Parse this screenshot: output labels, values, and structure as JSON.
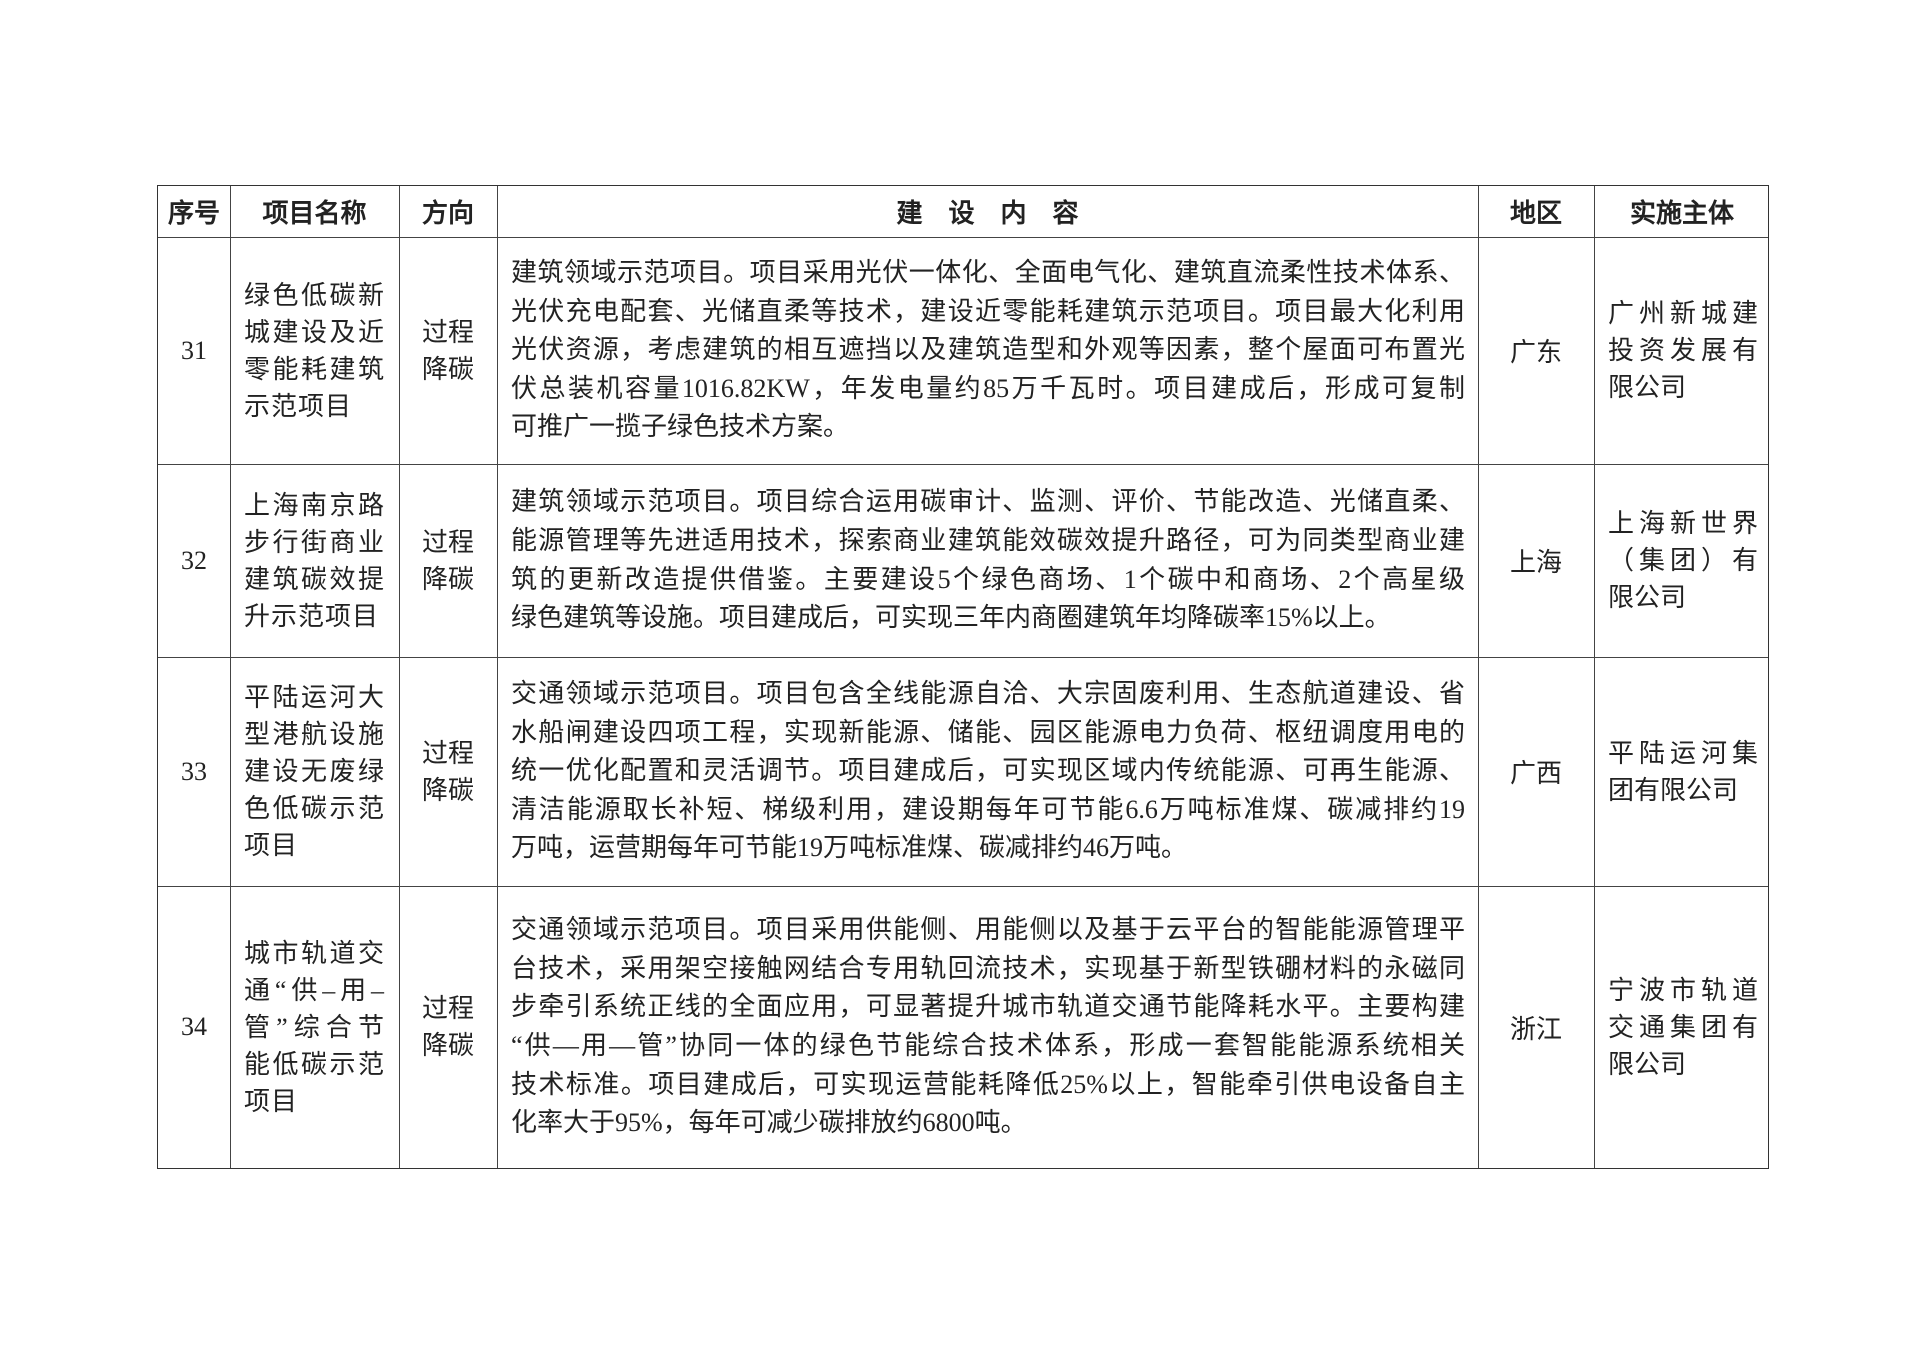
{
  "header": {
    "seq": "序号",
    "name": "项目名称",
    "direction": "方向",
    "content": "建　设　内　容",
    "region": "地区",
    "entity": "实施主体"
  },
  "rows": [
    {
      "seq": "31",
      "name_lines": [
        "绿色低碳新",
        "城建设及近",
        "零能耗建筑",
        "示范项目"
      ],
      "direction_lines": [
        "过程",
        "降碳"
      ],
      "content_lines": [
        "建筑领域示范项目。项目采用光伏一体化、全面电气化、建筑直流柔性技术体系、",
        "光伏充电配套、光储直柔等技术，建设近零能耗建筑示范项目。项目最大化利用",
        "光伏资源，考虑建筑的相互遮挡以及建筑造型和外观等因素，整个屋面可布置光",
        "伏总装机容量1016.82KW，年发电量约85万千瓦时。项目建成后，形成可复制",
        "可推广一揽子绿色技术方案。"
      ],
      "region": "广东",
      "entity_lines": [
        "广州新城建",
        "投资发展有",
        "限公司"
      ]
    },
    {
      "seq": "32",
      "name_lines": [
        "上海南京路",
        "步行街商业",
        "建筑碳效提",
        "升示范项目"
      ],
      "direction_lines": [
        "过程",
        "降碳"
      ],
      "content_lines": [
        "建筑领域示范项目。项目综合运用碳审计、监测、评价、节能改造、光储直柔、",
        "能源管理等先进适用技术，探索商业建筑能效碳效提升路径，可为同类型商业建",
        "筑的更新改造提供借鉴。主要建设5个绿色商场、1个碳中和商场、2个高星级",
        "绿色建筑等设施。项目建成后，可实现三年内商圈建筑年均降碳率15%以上。"
      ],
      "region": "上海",
      "entity_lines": [
        "上海新世界",
        "（集团）有",
        "限公司"
      ]
    },
    {
      "seq": "33",
      "name_lines": [
        "平陆运河大",
        "型港航设施",
        "建设无废绿",
        "色低碳示范",
        "项目"
      ],
      "direction_lines": [
        "过程",
        "降碳"
      ],
      "content_lines": [
        "交通领域示范项目。项目包含全线能源自洽、大宗固废利用、生态航道建设、省",
        "水船闸建设四项工程，实现新能源、储能、园区能源电力负荷、枢纽调度用电的",
        "统一优化配置和灵活调节。项目建成后，可实现区域内传统能源、可再生能源、",
        "清洁能源取长补短、梯级利用，建设期每年可节能6.6万吨标准煤、碳减排约19",
        "万吨，运营期每年可节能19万吨标准煤、碳减排约46万吨。"
      ],
      "region": "广西",
      "entity_lines": [
        "平陆运河集",
        "团有限公司"
      ]
    },
    {
      "seq": "34",
      "name_lines": [
        "城市轨道交",
        "通“供–用–",
        "管”综合节",
        "能低碳示范",
        "项目"
      ],
      "direction_lines": [
        "过程",
        "降碳"
      ],
      "content_lines": [
        "交通领域示范项目。项目采用供能侧、用能侧以及基于云平台的智能能源管理平",
        "台技术，采用架空接触网结合专用轨回流技术，实现基于新型铁硼材料的永磁同",
        "步牵引系统正线的全面应用，可显著提升城市轨道交通节能降耗水平。主要构建",
        "“供—用—管”协同一体的绿色节能综合技术体系，形成一套智能能源系统相关",
        "技术标准。项目建成后，可实现运营能耗降低25%以上，智能牵引供电设备自主",
        "化率大于95%，每年可减少碳排放约6800吨。"
      ],
      "region": "浙江",
      "entity_lines": [
        "宁波市轨道",
        "交通集团有",
        "限公司"
      ]
    }
  ]
}
